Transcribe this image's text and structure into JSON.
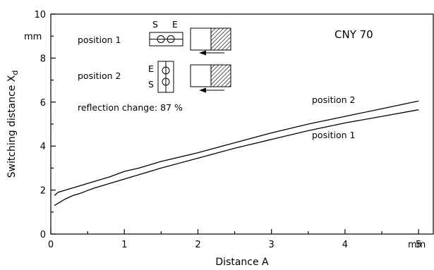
{
  "chart_data": {
    "type": "line",
    "title": "",
    "xlabel": "Distance  A",
    "ylabel": "Switching  distance  X",
    "ylabel_subscript": "d",
    "x_unit": "mm",
    "y_unit": "mm",
    "xlim": [
      0,
      5.2
    ],
    "ylim": [
      0,
      10
    ],
    "x_ticks": [
      0,
      1,
      2,
      3,
      4,
      5
    ],
    "y_ticks": [
      0,
      2,
      4,
      6,
      8,
      10
    ],
    "grid": false,
    "series": [
      {
        "name": "position  2",
        "x": [
          0.05,
          0.1,
          0.2,
          0.3,
          0.4,
          0.5,
          0.6,
          0.8,
          1.0,
          1.2,
          1.5,
          2.0,
          2.5,
          3.0,
          3.5,
          4.0,
          4.5,
          5.0
        ],
        "y": [
          1.75,
          1.9,
          2.0,
          2.1,
          2.2,
          2.3,
          2.4,
          2.6,
          2.85,
          3.0,
          3.3,
          3.7,
          4.15,
          4.6,
          5.0,
          5.35,
          5.7,
          6.05
        ]
      },
      {
        "name": "position  1",
        "x": [
          0.05,
          0.1,
          0.2,
          0.3,
          0.4,
          0.5,
          0.6,
          0.8,
          1.0,
          1.2,
          1.5,
          2.0,
          2.5,
          3.0,
          3.5,
          4.0,
          4.5,
          5.0
        ],
        "y": [
          1.3,
          1.4,
          1.6,
          1.75,
          1.85,
          1.98,
          2.1,
          2.3,
          2.5,
          2.7,
          3.0,
          3.45,
          3.9,
          4.3,
          4.7,
          5.05,
          5.35,
          5.65
        ]
      }
    ],
    "annotations": {
      "device": "CNY 70",
      "position1": "position  1",
      "position2": "position  2",
      "reflection_text": "reflection  change:  87 %",
      "sensor_s": "S",
      "sensor_e": "E"
    }
  }
}
